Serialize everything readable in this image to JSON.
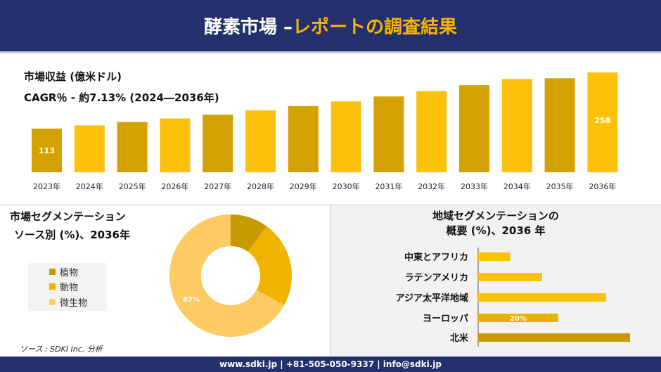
{
  "header": {
    "title_main": "酵素市場 –",
    "title_accent": "レポートの調査結果"
  },
  "revenue_label": "市場収益 (億米ドル)",
  "cagr_label": "CAGR％ - 約7.13% (2024―2036年)",
  "segment_title_1": "市場セグメンテーション",
  "segment_title_2": "ソース別 (%)、2036年",
  "region_title_1": "地域セグメンテーションの",
  "region_title_2": "概要 (%)、2036 年",
  "source": "ソース : SDKI Inc. 分析",
  "footer": "www.sdki.jp | +81-505-050-9337 | info@sdki.jp",
  "colors": {
    "navy": "#23306b",
    "gold": "#f5b400",
    "bar_dark": "#d4a200",
    "bar_light": "#fdc10a"
  },
  "chart_data": [
    {
      "type": "bar",
      "categories": [
        "2023年",
        "2024年",
        "2025年",
        "2026年",
        "2027年",
        "2028年",
        "2029年",
        "2030年",
        "2031年",
        "2032年",
        "2033年",
        "2034年",
        "2035年",
        "2036年"
      ],
      "values": [
        113,
        121,
        130,
        139,
        149,
        160,
        171,
        183,
        196,
        210,
        225,
        241,
        243,
        258
      ],
      "data_labels": {
        "0": "113",
        "13": "258"
      },
      "title": "市場収益 (億米ドル)",
      "ylim": [
        0,
        258
      ]
    },
    {
      "type": "pie",
      "categories": [
        "植物",
        "動物",
        "微生物"
      ],
      "values": [
        10,
        23,
        67
      ],
      "colors": [
        "#c99a00",
        "#f0b400",
        "#fdca63"
      ],
      "data_labels": {
        "2": "67%"
      },
      "title": "市場セグメンテーション ソース別 (%)、2036年"
    },
    {
      "type": "bar",
      "orientation": "horizontal",
      "categories": [
        "中東とアフリカ",
        "ラテンアメリカ",
        "アジア太平洋地域",
        "ヨーロッパ",
        "北米"
      ],
      "values": [
        8,
        16,
        32,
        20,
        38
      ],
      "colors": [
        "#fdc10a",
        "#fdc10a",
        "#fdc10a",
        "#e8b000",
        "#c99a00"
      ],
      "data_labels": {
        "3": "20%"
      },
      "title": "地域セグメンテーションの 概要 (%)、2036 年"
    }
  ]
}
